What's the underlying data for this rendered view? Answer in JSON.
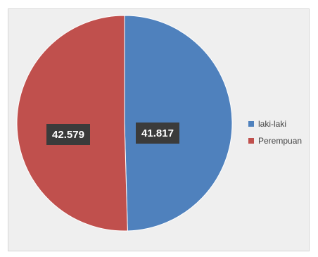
{
  "chart_data": {
    "type": "pie",
    "categories": [
      "laki-laki",
      "Perempuan"
    ],
    "values": [
      41817,
      42579
    ],
    "value_labels": [
      "41.817",
      "42.579"
    ],
    "colors": [
      "#4f81bd",
      "#c0504d"
    ],
    "legend_position": "right",
    "data_labels_shown": true
  }
}
